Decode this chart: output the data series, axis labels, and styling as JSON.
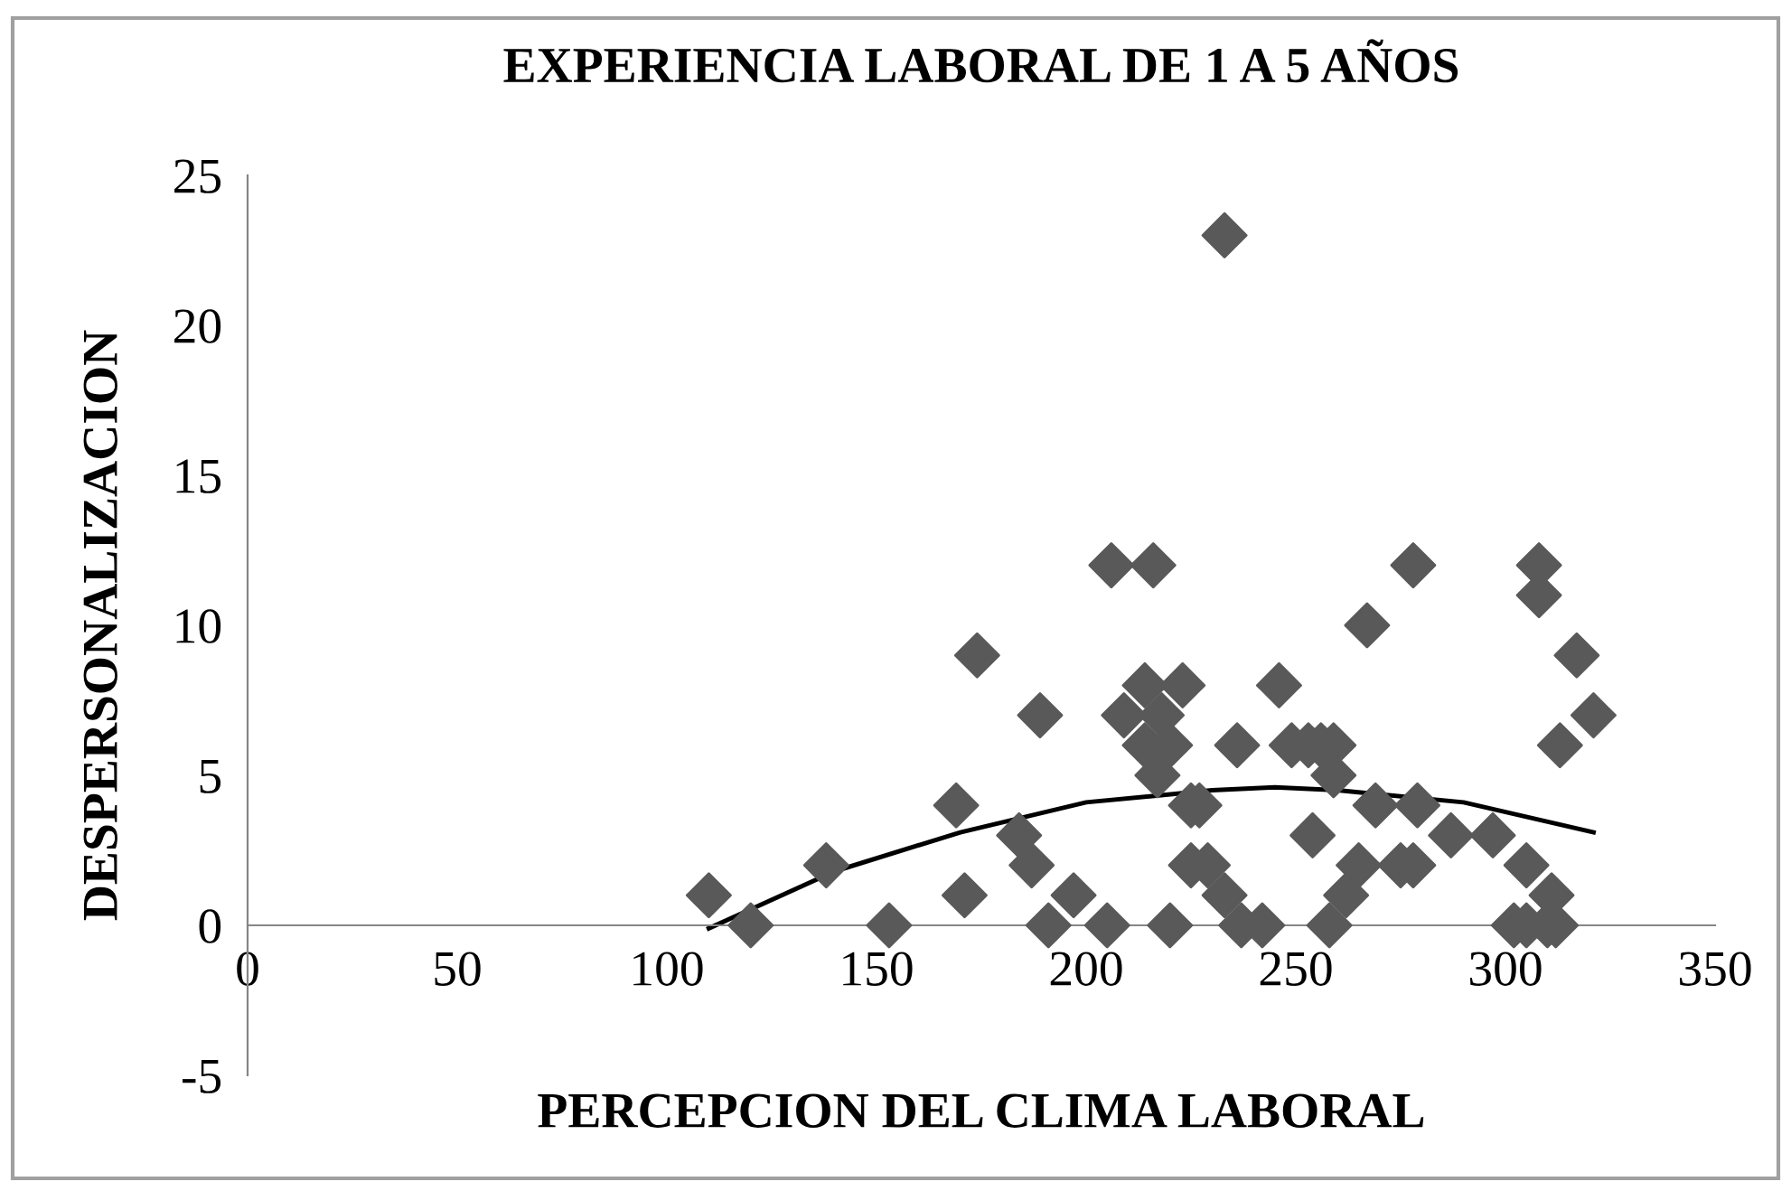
{
  "chart_data": {
    "type": "scatter",
    "title": "EXPERIENCIA LABORAL DE 1 A 5 AÑOS",
    "xlabel": "PERCEPCION DEL CLIMA LABORAL",
    "ylabel": "DESPERSONALIZACION",
    "xlim": [
      0,
      350
    ],
    "ylim": [
      -5,
      25
    ],
    "xticks": [
      0,
      50,
      100,
      150,
      200,
      250,
      300,
      350
    ],
    "yticks": [
      -5,
      0,
      5,
      10,
      15,
      20,
      25
    ],
    "grid": false,
    "legend": false,
    "marker": "diamond",
    "series": [
      {
        "color": "#595959",
        "x": [
          110,
          120,
          138,
          153,
          169,
          171,
          174,
          184,
          187,
          189,
          191,
          197,
          205,
          206,
          209,
          214,
          214,
          216,
          217,
          218,
          220,
          220,
          223,
          225,
          227,
          225,
          229,
          233,
          233,
          236,
          237,
          242,
          246,
          249,
          253,
          256,
          259,
          254,
          259,
          258,
          262,
          265,
          267,
          269,
          275,
          278,
          278,
          279,
          287,
          297,
          302,
          305,
          305,
          308,
          308,
          310,
          311,
          312,
          313,
          317,
          321
        ],
        "values": [
          1,
          0,
          2,
          0,
          4,
          1,
          9,
          3,
          2,
          7,
          0,
          1,
          0,
          12,
          7,
          8,
          6,
          12,
          5,
          7,
          6,
          0,
          8,
          4,
          4,
          2,
          2,
          1,
          23,
          6,
          0,
          0,
          8,
          6,
          6,
          6,
          6,
          3,
          5,
          0,
          1,
          2,
          10,
          4,
          2,
          2,
          12,
          4,
          3,
          3,
          0,
          0,
          2,
          12,
          11,
          0,
          1,
          0,
          6,
          9,
          7
        ]
      },
      {
        "type": "line",
        "color": "#000000",
        "marker": "none",
        "line_style": "solid",
        "x": [
          110,
          140,
          170,
          200,
          230,
          245,
          260,
          290,
          321
        ],
        "values": [
          -0.1,
          1.8,
          3.1,
          4.1,
          4.5,
          4.6,
          4.5,
          4.1,
          3.1
        ]
      }
    ]
  }
}
